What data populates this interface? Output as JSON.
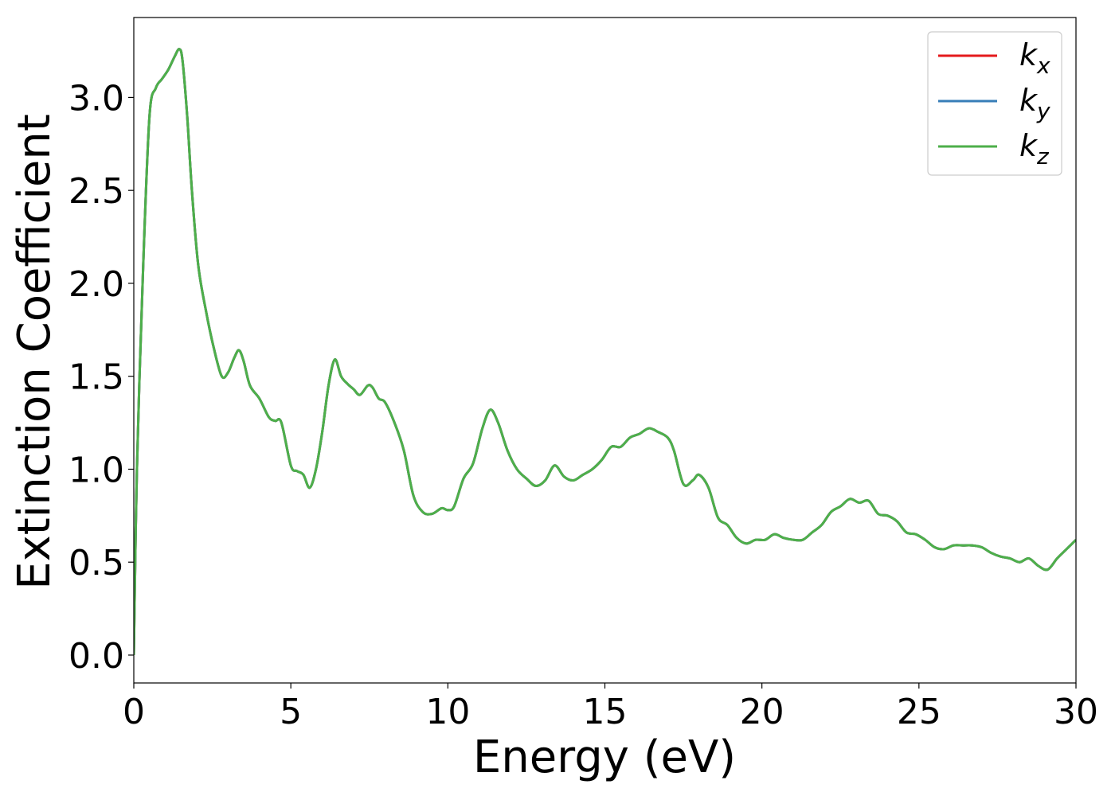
{
  "chart_data": {
    "type": "line",
    "xlabel": "Energy (eV)",
    "ylabel": "Extinction Coefficient",
    "xlim": [
      0,
      30
    ],
    "ylim": [
      -0.15,
      3.43
    ],
    "xticks": [
      0,
      5,
      10,
      15,
      20,
      25,
      30
    ],
    "xtick_labels": [
      "0",
      "5",
      "10",
      "15",
      "20",
      "25",
      "30"
    ],
    "yticks": [
      0.0,
      0.5,
      1.0,
      1.5,
      2.0,
      2.5,
      3.0
    ],
    "ytick_labels": [
      "0.0",
      "0.5",
      "1.0",
      "1.5",
      "2.0",
      "2.5",
      "3.0"
    ],
    "grid": false,
    "legend": {
      "position": "top-right",
      "entries": [
        {
          "base": "k",
          "sub": "x",
          "color": "#e41a1c"
        },
        {
          "base": "k",
          "sub": "y",
          "color": "#377eb8"
        },
        {
          "base": "k",
          "sub": "z",
          "color": "#4daf4a"
        }
      ]
    },
    "series": [
      {
        "name": "k_x",
        "color": "#e41a1c"
      },
      {
        "name": "k_y",
        "color": "#377eb8"
      },
      {
        "name": "k_z",
        "color": "#4daf4a"
      }
    ],
    "x": [
      0,
      0.1,
      0.3,
      0.5,
      0.7,
      0.9,
      1.1,
      1.3,
      1.45,
      1.55,
      1.7,
      1.85,
      2.05,
      2.3,
      2.55,
      2.8,
      3.0,
      3.2,
      3.35,
      3.5,
      3.7,
      4.0,
      4.3,
      4.5,
      4.7,
      5.0,
      5.2,
      5.4,
      5.6,
      5.8,
      6.0,
      6.2,
      6.4,
      6.6,
      6.8,
      7.0,
      7.2,
      7.45,
      7.6,
      7.8,
      8.0,
      8.3,
      8.6,
      8.9,
      9.2,
      9.5,
      9.8,
      10.0,
      10.2,
      10.5,
      10.8,
      11.1,
      11.35,
      11.6,
      11.9,
      12.2,
      12.5,
      12.8,
      13.1,
      13.4,
      13.7,
      14.0,
      14.3,
      14.6,
      14.9,
      15.2,
      15.5,
      15.8,
      16.1,
      16.4,
      16.7,
      17.0,
      17.2,
      17.5,
      17.8,
      18.0,
      18.3,
      18.6,
      18.9,
      19.2,
      19.5,
      19.8,
      20.1,
      20.4,
      20.7,
      21.0,
      21.3,
      21.6,
      21.9,
      22.2,
      22.5,
      22.8,
      23.1,
      23.4,
      23.7,
      24.0,
      24.3,
      24.6,
      24.9,
      25.2,
      25.5,
      25.8,
      26.1,
      26.4,
      26.7,
      27.0,
      27.3,
      27.6,
      27.9,
      28.2,
      28.5,
      28.8,
      29.1,
      29.4,
      29.7,
      30.0
    ],
    "y": [
      0.0,
      1.0,
      2.1,
      2.9,
      3.05,
      3.1,
      3.15,
      3.22,
      3.26,
      3.2,
      2.9,
      2.5,
      2.1,
      1.85,
      1.65,
      1.5,
      1.52,
      1.6,
      1.64,
      1.58,
      1.45,
      1.38,
      1.28,
      1.26,
      1.25,
      1.02,
      0.99,
      0.97,
      0.9,
      1.0,
      1.2,
      1.45,
      1.59,
      1.5,
      1.46,
      1.43,
      1.4,
      1.45,
      1.44,
      1.38,
      1.36,
      1.25,
      1.1,
      0.86,
      0.77,
      0.76,
      0.79,
      0.78,
      0.8,
      0.95,
      1.03,
      1.22,
      1.32,
      1.25,
      1.1,
      1.0,
      0.95,
      0.91,
      0.94,
      1.02,
      0.96,
      0.94,
      0.97,
      1.0,
      1.05,
      1.12,
      1.12,
      1.17,
      1.19,
      1.22,
      1.2,
      1.17,
      1.1,
      0.92,
      0.94,
      0.97,
      0.9,
      0.74,
      0.7,
      0.63,
      0.6,
      0.62,
      0.62,
      0.65,
      0.63,
      0.62,
      0.62,
      0.66,
      0.7,
      0.77,
      0.8,
      0.84,
      0.82,
      0.83,
      0.76,
      0.75,
      0.72,
      0.66,
      0.65,
      0.62,
      0.58,
      0.57,
      0.59,
      0.59,
      0.59,
      0.58,
      0.55,
      0.53,
      0.52,
      0.5,
      0.52,
      0.48,
      0.46,
      0.52,
      0.57,
      0.62
    ]
  }
}
